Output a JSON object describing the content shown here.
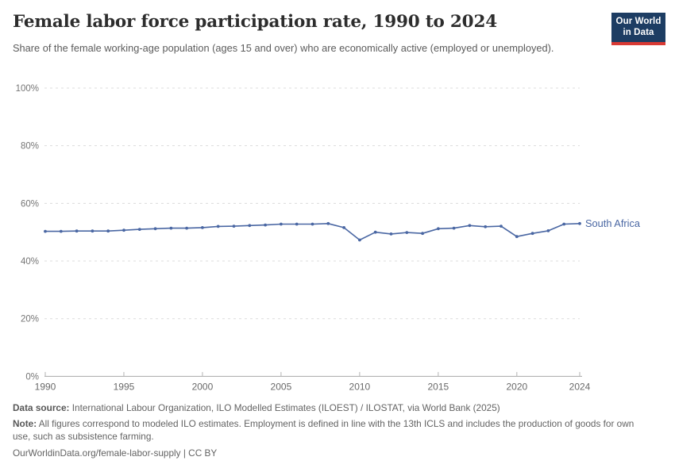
{
  "header": {
    "title": "Female labor force participation rate, 1990 to 2024",
    "subtitle": "Share of the female working-age population (ages 15 and over) who are economically active (employed or unemployed).",
    "logo": {
      "line1": "Our World",
      "line2": "in Data",
      "bg_color": "#1d3d63",
      "bar_color": "#d93a34"
    }
  },
  "chart_data": {
    "type": "line",
    "title": "Female labor force participation rate, 1990 to 2024",
    "xlabel": "",
    "ylabel": "",
    "y_unit": "%",
    "xlim": [
      1990,
      2024
    ],
    "ylim": [
      0,
      100
    ],
    "x_ticks": [
      1990,
      1995,
      2000,
      2005,
      2010,
      2015,
      2020,
      2024
    ],
    "y_ticks": [
      0,
      20,
      40,
      60,
      80,
      100
    ],
    "grid": "horizontal-dashed",
    "legend": "line-end-label",
    "series": [
      {
        "name": "South Africa",
        "color": "#4a67a3",
        "years": [
          1990,
          1991,
          1992,
          1993,
          1994,
          1995,
          1996,
          1997,
          1998,
          1999,
          2000,
          2001,
          2002,
          2003,
          2004,
          2005,
          2006,
          2007,
          2008,
          2009,
          2010,
          2011,
          2012,
          2013,
          2014,
          2015,
          2016,
          2017,
          2018,
          2019,
          2020,
          2021,
          2022,
          2023,
          2024
        ],
        "values": [
          50.3,
          50.3,
          50.4,
          50.4,
          50.4,
          50.7,
          51.0,
          51.2,
          51.4,
          51.4,
          51.6,
          52.0,
          52.1,
          52.3,
          52.5,
          52.8,
          52.8,
          52.8,
          53.0,
          51.6,
          47.3,
          50.0,
          49.4,
          49.9,
          49.6,
          51.2,
          51.4,
          52.3,
          51.9,
          52.1,
          48.5,
          49.6,
          50.5,
          52.8,
          53.0
        ]
      }
    ]
  },
  "footer": {
    "source_label": "Data source:",
    "source_text": " International Labour Organization, ILO Modelled Estimates (ILOEST) / ILOSTAT, via World Bank (2025)",
    "note_label": "Note:",
    "note_text": " All figures correspond to modeled ILO estimates. Employment is defined in line with the 13th ICLS and includes the production of goods for own use, such as subsistence farming.",
    "link": "OurWorldinData.org/female-labor-supply | CC BY"
  }
}
